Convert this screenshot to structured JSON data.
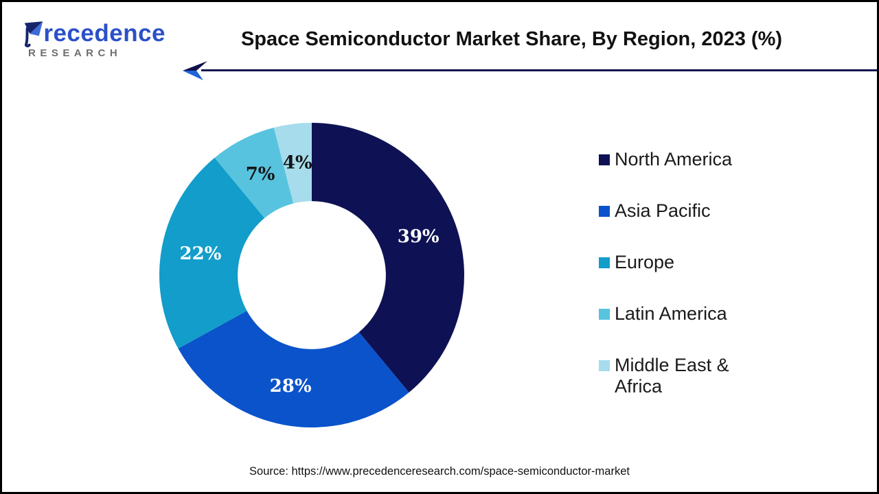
{
  "logo": {
    "name": "recedence",
    "name_full": "Precedence",
    "sub": "RESEARCH"
  },
  "header": {
    "title": "Space Semiconductor Market Share, By Region, 2023 (%)"
  },
  "footer": {
    "source": "Source: https://www.precedenceresearch.com/space-semiconductor-market"
  },
  "colors": {
    "arrow_line": "#10104e",
    "arrow_dark": "#10104e",
    "arrow_blue": "#1e63d6",
    "logo_blue": "#2b50c8",
    "logo_navy": "#16246b",
    "logo_gray": "#6e6e6e",
    "title_text": "#111111"
  },
  "chart_data": {
    "type": "pie",
    "subtype": "donut",
    "title": "Space Semiconductor Market Share, By Region, 2023 (%)",
    "categories": [
      "North America",
      "Asia Pacific",
      "Europe",
      "Latin America",
      "Middle East & Africa"
    ],
    "values": [
      39,
      28,
      22,
      7,
      4
    ],
    "labels": [
      "39%",
      "28%",
      "22%",
      "7%",
      "4%"
    ],
    "unit": "%",
    "colors": [
      "#0e1254",
      "#0b53cb",
      "#129dca",
      "#57c3df",
      "#a6dceb"
    ],
    "label_colors": [
      "#ffffff",
      "#ffffff",
      "#ffffff",
      "#141414",
      "#141414"
    ],
    "start_angle_deg": 0,
    "direction": "clockwise",
    "inner_radius_ratio": 0.486,
    "label_radius_ratio": 0.743,
    "legend_position": "right",
    "grid": false
  }
}
